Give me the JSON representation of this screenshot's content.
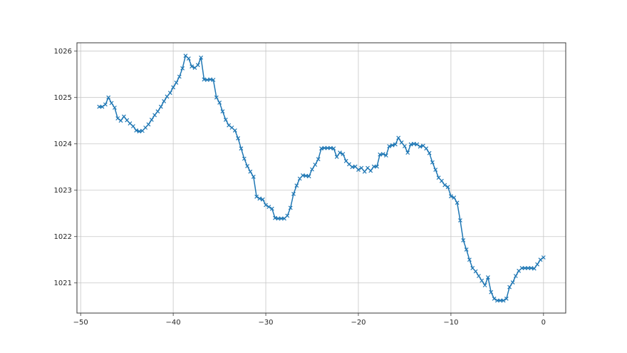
{
  "chart_data": {
    "type": "line",
    "title": "",
    "xlabel": "",
    "ylabel": "",
    "grid": true,
    "legend_position": "none",
    "xlim": [
      -50.4,
      2.4
    ],
    "ylim": [
      1020.35,
      1026.18
    ],
    "x_ticks": [
      -50,
      -40,
      -30,
      -20,
      -10,
      0
    ],
    "x_tick_labels": [
      "−50",
      "−40",
      "−30",
      "−20",
      "−10",
      "0"
    ],
    "y_ticks": [
      1021,
      1022,
      1023,
      1024,
      1025,
      1026
    ],
    "y_tick_labels": [
      "1021",
      "1022",
      "1023",
      "1024",
      "1025",
      "1026"
    ],
    "series": [
      {
        "name": "series-0",
        "color": "#1f77b4",
        "marker": "x",
        "points": [
          [
            -48,
            1024.8
          ],
          [
            -47.67,
            1024.8
          ],
          [
            -47.33,
            1024.85
          ],
          [
            -47,
            1025.0
          ],
          [
            -46.67,
            1024.88
          ],
          [
            -46.33,
            1024.78
          ],
          [
            -46,
            1024.55
          ],
          [
            -45.67,
            1024.5
          ],
          [
            -45.33,
            1024.59
          ],
          [
            -45,
            1024.51
          ],
          [
            -44.67,
            1024.44
          ],
          [
            -44.33,
            1024.38
          ],
          [
            -44,
            1024.29
          ],
          [
            -43.67,
            1024.27
          ],
          [
            -43.33,
            1024.28
          ],
          [
            -43,
            1024.35
          ],
          [
            -42.67,
            1024.42
          ],
          [
            -42.33,
            1024.52
          ],
          [
            -42,
            1024.62
          ],
          [
            -41.67,
            1024.7
          ],
          [
            -41.33,
            1024.8
          ],
          [
            -41,
            1024.92
          ],
          [
            -40.67,
            1025.02
          ],
          [
            -40.33,
            1025.1
          ],
          [
            -40,
            1025.22
          ],
          [
            -39.67,
            1025.32
          ],
          [
            -39.33,
            1025.45
          ],
          [
            -39,
            1025.63
          ],
          [
            -38.67,
            1025.9
          ],
          [
            -38.33,
            1025.84
          ],
          [
            -38,
            1025.67
          ],
          [
            -37.67,
            1025.64
          ],
          [
            -37.33,
            1025.7
          ],
          [
            -37,
            1025.86
          ],
          [
            -36.67,
            1025.39
          ],
          [
            -36.33,
            1025.38
          ],
          [
            -36,
            1025.39
          ],
          [
            -35.67,
            1025.38
          ],
          [
            -35.33,
            1025.0
          ],
          [
            -35,
            1024.89
          ],
          [
            -34.67,
            1024.7
          ],
          [
            -34.33,
            1024.52
          ],
          [
            -34,
            1024.4
          ],
          [
            -33.67,
            1024.35
          ],
          [
            -33.33,
            1024.29
          ],
          [
            -33,
            1024.12
          ],
          [
            -32.67,
            1023.9
          ],
          [
            -32.33,
            1023.68
          ],
          [
            -32,
            1023.52
          ],
          [
            -31.67,
            1023.4
          ],
          [
            -31.33,
            1023.29
          ],
          [
            -31,
            1022.86
          ],
          [
            -30.67,
            1022.82
          ],
          [
            -30.33,
            1022.8
          ],
          [
            -30,
            1022.68
          ],
          [
            -29.67,
            1022.64
          ],
          [
            -29.33,
            1022.6
          ],
          [
            -29,
            1022.4
          ],
          [
            -28.67,
            1022.39
          ],
          [
            -28.33,
            1022.39
          ],
          [
            -28,
            1022.39
          ],
          [
            -27.67,
            1022.45
          ],
          [
            -27.33,
            1022.62
          ],
          [
            -27,
            1022.92
          ],
          [
            -26.67,
            1023.1
          ],
          [
            -26.33,
            1023.25
          ],
          [
            -26,
            1023.32
          ],
          [
            -25.67,
            1023.31
          ],
          [
            -25.33,
            1023.3
          ],
          [
            -25,
            1023.45
          ],
          [
            -24.67,
            1023.55
          ],
          [
            -24.33,
            1023.67
          ],
          [
            -24,
            1023.9
          ],
          [
            -23.67,
            1023.91
          ],
          [
            -23.33,
            1023.91
          ],
          [
            -23,
            1023.91
          ],
          [
            -22.67,
            1023.9
          ],
          [
            -22.33,
            1023.72
          ],
          [
            -22,
            1023.81
          ],
          [
            -21.67,
            1023.78
          ],
          [
            -21.33,
            1023.63
          ],
          [
            -21,
            1023.56
          ],
          [
            -20.67,
            1023.5
          ],
          [
            -20.33,
            1023.51
          ],
          [
            -20,
            1023.44
          ],
          [
            -19.67,
            1023.48
          ],
          [
            -19.33,
            1023.4
          ],
          [
            -19,
            1023.48
          ],
          [
            -18.67,
            1023.42
          ],
          [
            -18.33,
            1023.51
          ],
          [
            -18,
            1023.51
          ],
          [
            -17.67,
            1023.77
          ],
          [
            -17.33,
            1023.78
          ],
          [
            -17,
            1023.75
          ],
          [
            -16.67,
            1023.95
          ],
          [
            -16.33,
            1023.97
          ],
          [
            -16,
            1023.99
          ],
          [
            -15.67,
            1024.13
          ],
          [
            -15.33,
            1024.03
          ],
          [
            -15,
            1023.95
          ],
          [
            -14.67,
            1023.81
          ],
          [
            -14.33,
            1023.99
          ],
          [
            -14,
            1024.0
          ],
          [
            -13.67,
            1023.99
          ],
          [
            -13.33,
            1023.94
          ],
          [
            -13,
            1023.96
          ],
          [
            -12.67,
            1023.9
          ],
          [
            -12.33,
            1023.8
          ],
          [
            -12,
            1023.6
          ],
          [
            -11.67,
            1023.44
          ],
          [
            -11.33,
            1023.27
          ],
          [
            -11,
            1023.2
          ],
          [
            -10.67,
            1023.11
          ],
          [
            -10.33,
            1023.07
          ],
          [
            -10,
            1022.87
          ],
          [
            -9.67,
            1022.84
          ],
          [
            -9.33,
            1022.73
          ],
          [
            -9,
            1022.35
          ],
          [
            -8.67,
            1021.92
          ],
          [
            -8.33,
            1021.72
          ],
          [
            -8,
            1021.5
          ],
          [
            -7.67,
            1021.32
          ],
          [
            -7.33,
            1021.25
          ],
          [
            -7,
            1021.15
          ],
          [
            -6.67,
            1021.05
          ],
          [
            -6.33,
            1020.95
          ],
          [
            -6,
            1021.12
          ],
          [
            -5.67,
            1020.8
          ],
          [
            -5.33,
            1020.66
          ],
          [
            -5,
            1020.62
          ],
          [
            -4.67,
            1020.62
          ],
          [
            -4.33,
            1020.62
          ],
          [
            -4,
            1020.66
          ],
          [
            -3.67,
            1020.91
          ],
          [
            -3.33,
            1021.01
          ],
          [
            -3,
            1021.15
          ],
          [
            -2.67,
            1021.26
          ],
          [
            -2.33,
            1021.32
          ],
          [
            -2,
            1021.32
          ],
          [
            -1.67,
            1021.32
          ],
          [
            -1.33,
            1021.32
          ],
          [
            -1,
            1021.31
          ],
          [
            -0.67,
            1021.4
          ],
          [
            -0.33,
            1021.5
          ],
          [
            0,
            1021.55
          ]
        ]
      }
    ]
  },
  "style": {
    "background": "#ffffff",
    "grid_color": "#c6c6c6",
    "spine_color": "#3a3a3a",
    "tick_color": "#3a3a3a",
    "tick_label_color": "#262626",
    "line_color": "#1f77b4"
  }
}
